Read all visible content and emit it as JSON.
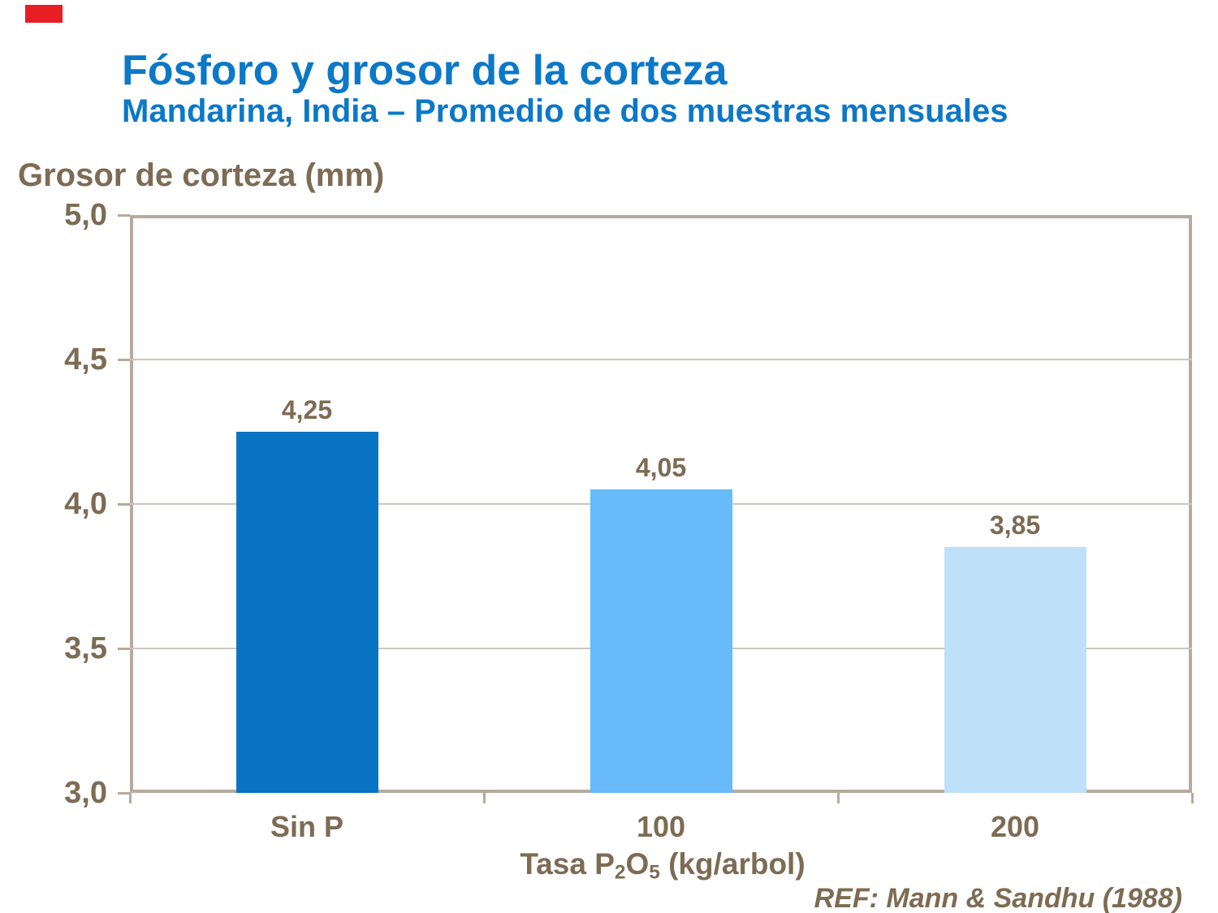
{
  "header": {
    "title": "Fósforo y grosor de la corteza",
    "subtitle": "Mandarina, India – Promedio de dos muestras mensuales"
  },
  "footer": {
    "reference": "REF: Mann & Sandhu (1988)"
  },
  "axes": {
    "y_title": "Grosor de corteza (mm)",
    "x_title_parts": {
      "pre": "Tasa P",
      "sub1": "2",
      "mid": "O",
      "sub2": "5",
      "post": " (kg/arbol)"
    }
  },
  "chart_data": {
    "type": "bar",
    "title": "Fósforo y grosor de la corteza",
    "subtitle": "Mandarina, India – Promedio de dos muestras mensuales",
    "categories": [
      "Sin P",
      "100",
      "200"
    ],
    "values": [
      4.25,
      4.05,
      3.85
    ],
    "value_labels": [
      "4,25",
      "4,05",
      "3,85"
    ],
    "xlabel": "Tasa P2O5 (kg/arbol)",
    "ylabel": "Grosor de corteza (mm)",
    "ylim": [
      3.0,
      5.0
    ],
    "ytick_interval": 0.5,
    "ytick_labels": [
      "5,0",
      "4,5",
      "4,0",
      "3,5",
      "3,0"
    ],
    "grid": true,
    "legend": "none",
    "bar_colors": [
      "#0a74c4",
      "#66bbf8",
      "#bee0f8"
    ],
    "annotation": "REF: Mann & Sandhu (1988)"
  },
  "colors": {
    "heading_blue": "#0b78c8",
    "text_brown": "#7d6b53",
    "axis_frame": "#b7aa9d",
    "gridline": "#cfc5ba",
    "corner_marker_red": "#e81e25"
  }
}
